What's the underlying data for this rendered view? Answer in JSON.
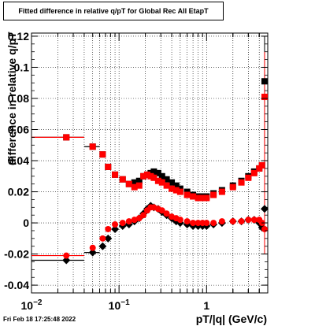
{
  "chart_data": {
    "type": "scatter",
    "title": "Fitted difference in relative q/pT for Global Rec All EtapT",
    "xlabel": "pT/|q| (GeV/c)",
    "ylabel": "difference in relative q/pT",
    "x_scale": "log",
    "xlim": [
      0.01,
      5.0
    ],
    "ylim": [
      -0.045,
      0.122
    ],
    "grid": true,
    "y_ticks": [
      -0.04,
      -0.02,
      0,
      0.02,
      0.04,
      0.06,
      0.08,
      0.1,
      0.12
    ],
    "y_tick_labels": [
      "-0.04",
      "-0.02",
      "0",
      "0.02",
      "0.04",
      "0.06",
      "0.08",
      "0.1",
      "0.12"
    ],
    "x_major_ticks": [
      0.01,
      0.1,
      1
    ],
    "series": [
      {
        "color": "#000000",
        "marker": "diamond",
        "role": "mean",
        "points": [
          [
            0.025,
            -0.024
          ],
          [
            0.05,
            -0.019
          ],
          [
            0.065,
            -0.015
          ],
          [
            0.075,
            -0.01
          ],
          [
            0.09,
            -0.004
          ],
          [
            0.11,
            -0.002
          ],
          [
            0.13,
            -0.001
          ],
          [
            0.15,
            0.001
          ],
          [
            0.17,
            0.003
          ],
          [
            0.19,
            0.006
          ],
          [
            0.21,
            0.009
          ],
          [
            0.23,
            0.011
          ],
          [
            0.25,
            0.01
          ],
          [
            0.28,
            0.009
          ],
          [
            0.31,
            0.007
          ],
          [
            0.35,
            0.005
          ],
          [
            0.4,
            0.003
          ],
          [
            0.45,
            0.001
          ],
          [
            0.5,
            0.0
          ],
          [
            0.6,
            -0.001
          ],
          [
            0.7,
            -0.002
          ],
          [
            0.8,
            -0.002
          ],
          [
            0.9,
            -0.002
          ],
          [
            1.0,
            -0.002
          ],
          [
            1.2,
            -0.001
          ],
          [
            1.5,
            0.0
          ],
          [
            2.0,
            0.001
          ],
          [
            2.5,
            0.001
          ],
          [
            3.0,
            0.002
          ],
          [
            3.5,
            0.002
          ],
          [
            4.0,
            0.0
          ],
          [
            4.3,
            -0.003
          ],
          [
            4.6,
            0.009
          ]
        ]
      },
      {
        "color": "#000000",
        "marker": "square",
        "role": "sigma",
        "points": [
          [
            0.025,
            0.055
          ],
          [
            0.05,
            0.049
          ],
          [
            0.065,
            0.044
          ],
          [
            0.075,
            0.036
          ],
          [
            0.09,
            0.031
          ],
          [
            0.11,
            0.028
          ],
          [
            0.13,
            0.025
          ],
          [
            0.15,
            0.026
          ],
          [
            0.17,
            0.027
          ],
          [
            0.19,
            0.03
          ],
          [
            0.21,
            0.031
          ],
          [
            0.23,
            0.032
          ],
          [
            0.25,
            0.033
          ],
          [
            0.28,
            0.032
          ],
          [
            0.31,
            0.03
          ],
          [
            0.35,
            0.028
          ],
          [
            0.4,
            0.026
          ],
          [
            0.45,
            0.024
          ],
          [
            0.5,
            0.022
          ],
          [
            0.6,
            0.02
          ],
          [
            0.7,
            0.018
          ],
          [
            0.8,
            0.017
          ],
          [
            0.9,
            0.017
          ],
          [
            1.0,
            0.017
          ],
          [
            1.2,
            0.019
          ],
          [
            1.5,
            0.021
          ],
          [
            2.0,
            0.024
          ],
          [
            2.5,
            0.027
          ],
          [
            3.0,
            0.03
          ],
          [
            3.5,
            0.033
          ],
          [
            4.0,
            0.035
          ],
          [
            4.3,
            0.037
          ],
          [
            4.6,
            0.091
          ]
        ]
      },
      {
        "color": "#ff0000",
        "marker": "circle",
        "role": "mean",
        "points": [
          [
            0.025,
            -0.021
          ],
          [
            0.05,
            -0.016
          ],
          [
            0.065,
            -0.01
          ],
          [
            0.075,
            -0.004
          ],
          [
            0.09,
            -0.001
          ],
          [
            0.11,
            0.0
          ],
          [
            0.13,
            0.001
          ],
          [
            0.15,
            0.002
          ],
          [
            0.17,
            0.003
          ],
          [
            0.19,
            0.005
          ],
          [
            0.21,
            0.008
          ],
          [
            0.23,
            0.01
          ],
          [
            0.25,
            0.01
          ],
          [
            0.28,
            0.009
          ],
          [
            0.31,
            0.008
          ],
          [
            0.35,
            0.006
          ],
          [
            0.4,
            0.004
          ],
          [
            0.45,
            0.003
          ],
          [
            0.5,
            0.002
          ],
          [
            0.6,
            0.001
          ],
          [
            0.7,
            0.0
          ],
          [
            0.8,
            0.0
          ],
          [
            0.9,
            0.0
          ],
          [
            1.0,
            0.0
          ],
          [
            1.2,
            0.0
          ],
          [
            1.5,
            0.001
          ],
          [
            2.0,
            0.001
          ],
          [
            2.5,
            0.001
          ],
          [
            3.0,
            0.002
          ],
          [
            3.5,
            0.002
          ],
          [
            4.0,
            0.002
          ],
          [
            4.3,
            0.0
          ],
          [
            4.6,
            -0.004
          ]
        ]
      },
      {
        "color": "#ff0000",
        "marker": "square",
        "role": "sigma",
        "points": [
          [
            0.025,
            0.055
          ],
          [
            0.05,
            0.049
          ],
          [
            0.065,
            0.044
          ],
          [
            0.075,
            0.036
          ],
          [
            0.09,
            0.031
          ],
          [
            0.11,
            0.028
          ],
          [
            0.13,
            0.025
          ],
          [
            0.15,
            0.023
          ],
          [
            0.17,
            0.024
          ],
          [
            0.19,
            0.03
          ],
          [
            0.21,
            0.031
          ],
          [
            0.23,
            0.03
          ],
          [
            0.25,
            0.029
          ],
          [
            0.28,
            0.027
          ],
          [
            0.31,
            0.026
          ],
          [
            0.35,
            0.024
          ],
          [
            0.4,
            0.022
          ],
          [
            0.45,
            0.021
          ],
          [
            0.5,
            0.02
          ],
          [
            0.6,
            0.018
          ],
          [
            0.7,
            0.017
          ],
          [
            0.8,
            0.016
          ],
          [
            0.9,
            0.016
          ],
          [
            1.0,
            0.016
          ],
          [
            1.2,
            0.018
          ],
          [
            1.5,
            0.02
          ],
          [
            2.0,
            0.023
          ],
          [
            2.5,
            0.026
          ],
          [
            3.0,
            0.029
          ],
          [
            3.5,
            0.032
          ],
          [
            4.0,
            0.035
          ],
          [
            4.3,
            0.037
          ],
          [
            4.6,
            0.081
          ]
        ]
      }
    ],
    "horizontal_bins": [
      {
        "color": "#000000",
        "x": [
          0.01,
          0.04
        ],
        "y": -0.024
      },
      {
        "color": "#ff0000",
        "x": [
          0.01,
          0.04
        ],
        "y": -0.021
      },
      {
        "color": "#000000",
        "x": [
          0.01,
          0.04
        ],
        "y": 0.055
      },
      {
        "color": "#ff0000",
        "x": [
          0.01,
          0.04
        ],
        "y": 0.055
      },
      {
        "color": "#000000",
        "x": [
          0.04,
          0.06
        ],
        "y": -0.019
      },
      {
        "color": "#000000",
        "x": [
          0.04,
          0.06
        ],
        "y": 0.049
      }
    ]
  },
  "footer_text": "Fri Feb 18 17:25:48 2022"
}
